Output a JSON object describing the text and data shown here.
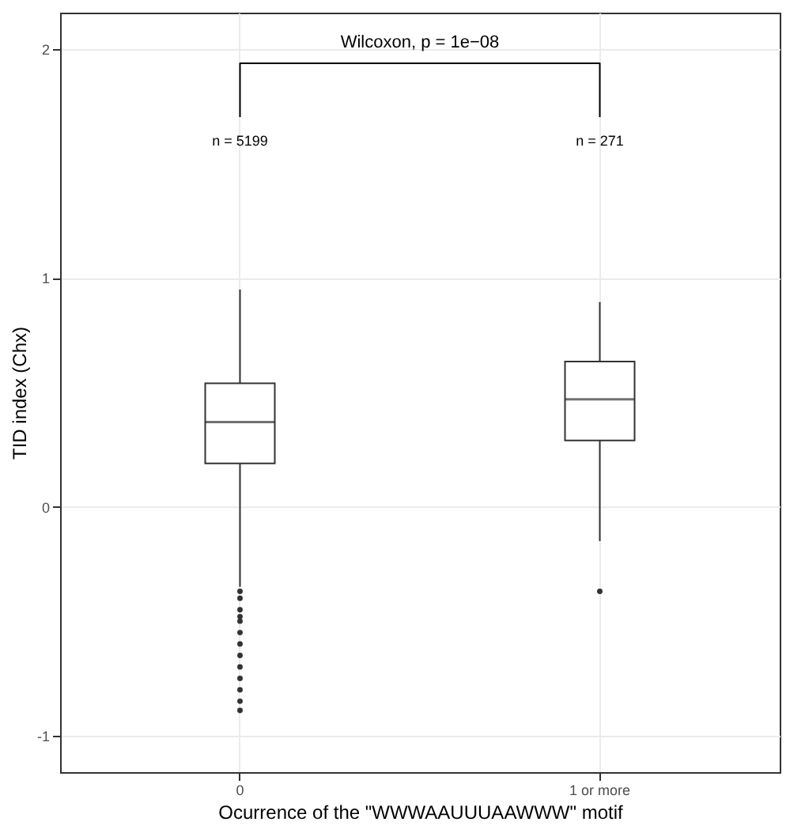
{
  "chart_data": {
    "type": "box",
    "xlabel": "Ocurrence of the \"WWWAAUUUAAWWW\" motif",
    "ylabel": "TID index (Chx)",
    "categories": [
      "0",
      "1 or more"
    ],
    "boxes": [
      {
        "low": -0.35,
        "q1": 0.19,
        "median": 0.37,
        "q3": 0.54,
        "high": 0.95,
        "outliers": [
          -0.37,
          -0.4,
          -0.45,
          -0.48,
          -0.5,
          -0.55,
          -0.6,
          -0.65,
          -0.7,
          -0.75,
          -0.8,
          -0.85,
          -0.89
        ]
      },
      {
        "low": -0.15,
        "q1": 0.29,
        "median": 0.47,
        "q3": 0.635,
        "high": 0.895,
        "outliers": [
          -0.37
        ]
      }
    ],
    "ylim": [
      -1.16,
      2.16
    ],
    "yticks": [
      -1,
      0,
      1,
      2
    ],
    "grid": true,
    "annotations": [
      "Wilcoxon, p = 1e−08",
      "n = 5199",
      "n = 271"
    ]
  }
}
